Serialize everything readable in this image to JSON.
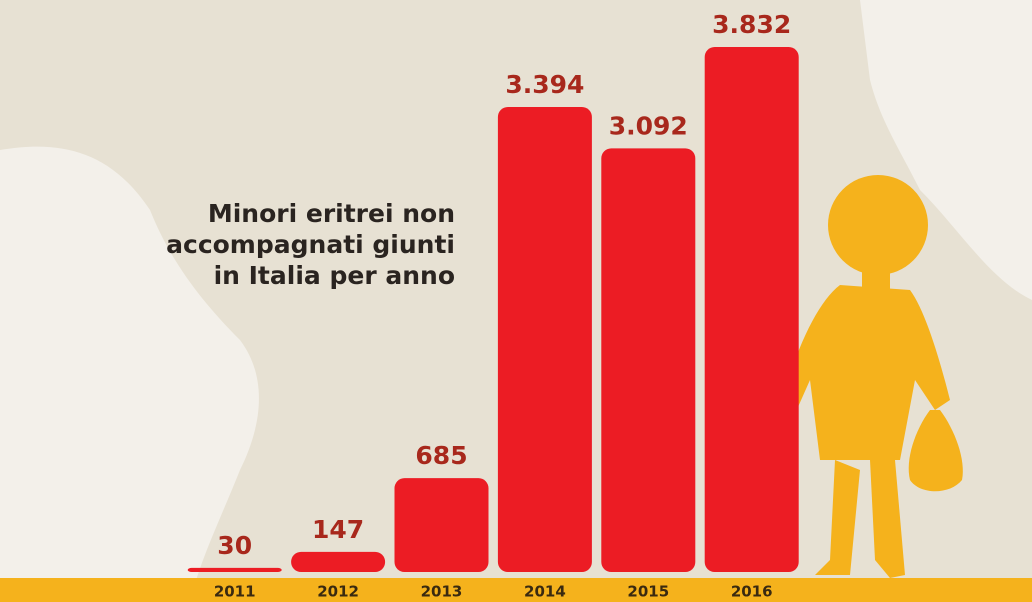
{
  "chart_data": {
    "type": "bar",
    "title": "Minori eritrei non accompagnati giunti in Italia per anno",
    "categories": [
      "2011",
      "2012",
      "2013",
      "2014",
      "2015",
      "2016"
    ],
    "values": [
      30,
      147,
      685,
      3394,
      3092,
      3832
    ],
    "value_labels": [
      "30",
      "147",
      "685",
      "3.394",
      "3.092",
      "3.832"
    ],
    "color": "#ec1c24"
  }
}
